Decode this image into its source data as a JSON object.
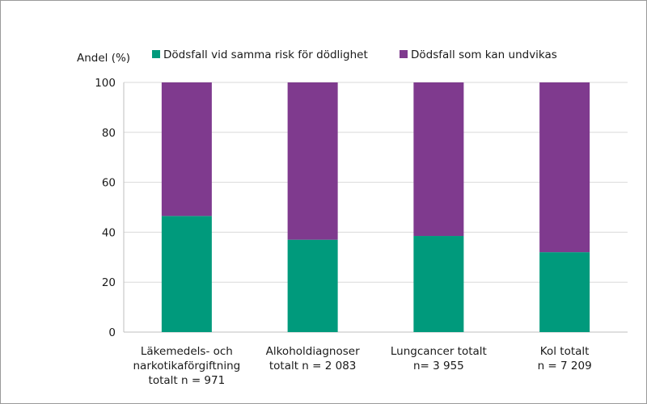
{
  "chart_data": {
    "type": "bar",
    "stacked": true,
    "ylabel": "Andel (%)",
    "ylim": [
      0,
      100
    ],
    "yticks": [
      0,
      20,
      40,
      60,
      80,
      100
    ],
    "grid": true,
    "legend_position": "top",
    "categories": [
      [
        "Läkemedels- och",
        "narkotikaförgiftning",
        "totalt n = 971"
      ],
      [
        "Alkoholdiagnoser",
        "totalt n = 2 083"
      ],
      [
        "Lungcancer totalt",
        "n= 3 955"
      ],
      [
        "Kol totalt",
        "n = 7 209"
      ]
    ],
    "series": [
      {
        "name": "Dödsfall vid samma risk för dödlighet",
        "color": "#009a7c",
        "values": [
          46.5,
          37,
          38.5,
          32
        ]
      },
      {
        "name": "Dödsfall som kan undvikas",
        "color": "#7f3a8e",
        "values": [
          53.5,
          63,
          61.5,
          68
        ]
      }
    ]
  }
}
